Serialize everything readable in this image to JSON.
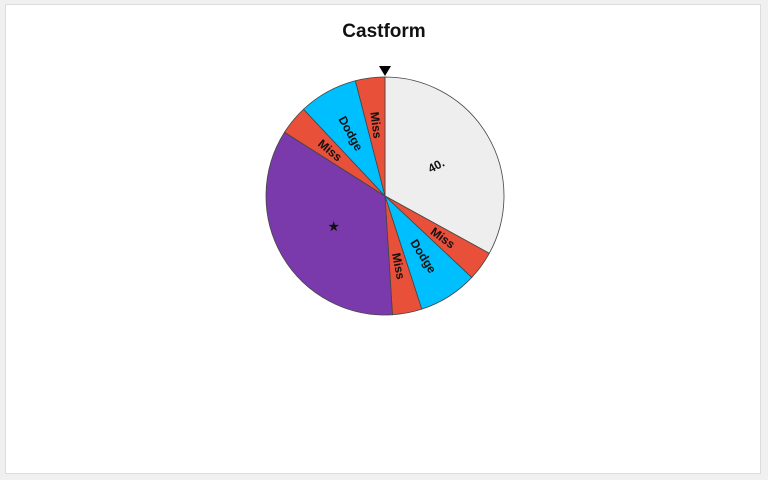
{
  "title": "Castform",
  "colors": {
    "miss": "#e8503a",
    "dodge": "#00bfff",
    "damage": "#eeeeee",
    "star": "#7b3aab",
    "border": "#444444"
  },
  "wheel": {
    "segments": [
      {
        "label": "40.",
        "size": 33,
        "color": "#eeeeee"
      },
      {
        "label": "Miss",
        "size": 4,
        "color": "#e8503a"
      },
      {
        "label": "Dodge",
        "size": 8,
        "color": "#00bfff"
      },
      {
        "label": "Miss",
        "size": 4,
        "color": "#e8503a"
      },
      {
        "label": "★",
        "size": 35,
        "color": "#7b3aab"
      },
      {
        "label": "Miss",
        "size": 4,
        "color": "#e8503a"
      },
      {
        "label": "Dodge",
        "size": 8,
        "color": "#00bfff"
      },
      {
        "label": "Miss",
        "size": 4,
        "color": "#e8503a"
      }
    ],
    "pointer_icon": "down-triangle-pointer-icon"
  }
}
